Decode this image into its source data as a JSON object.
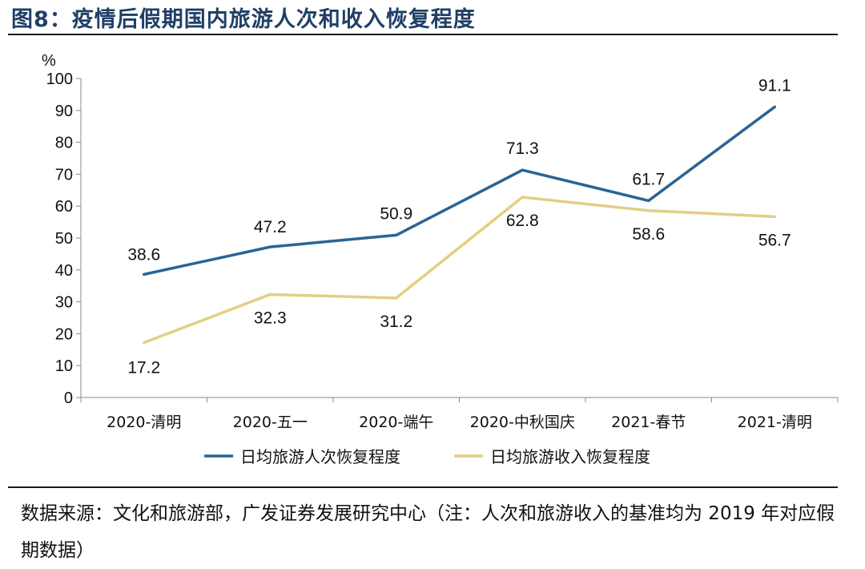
{
  "title": "图8：疫情后假期国内旅游人次和收入恢复程度",
  "source": "数据来源：文化和旅游部，广发证券发展研究中心（注：人次和旅游收入的基准均为 2019 年对应假期数据）",
  "colors": {
    "series1": "#2a6494",
    "series2": "#e2cf83",
    "title": "#1f3f66"
  },
  "chart_data": {
    "type": "line",
    "ylabel": "%",
    "ylim": [
      0,
      100
    ],
    "yticks": [
      0,
      10,
      20,
      30,
      40,
      50,
      60,
      70,
      80,
      90,
      100
    ],
    "categories": [
      "2020-清明",
      "2020-五一",
      "2020-端午",
      "2020-中秋国庆",
      "2021-春节",
      "2021-清明"
    ],
    "series": [
      {
        "name": "日均旅游人次恢复程度",
        "values": [
          38.6,
          47.2,
          50.9,
          71.3,
          61.7,
          91.1
        ]
      },
      {
        "name": "日均旅游收入恢复程度",
        "values": [
          17.2,
          32.3,
          31.2,
          62.8,
          58.6,
          56.7
        ]
      }
    ],
    "legend": "bottom"
  }
}
